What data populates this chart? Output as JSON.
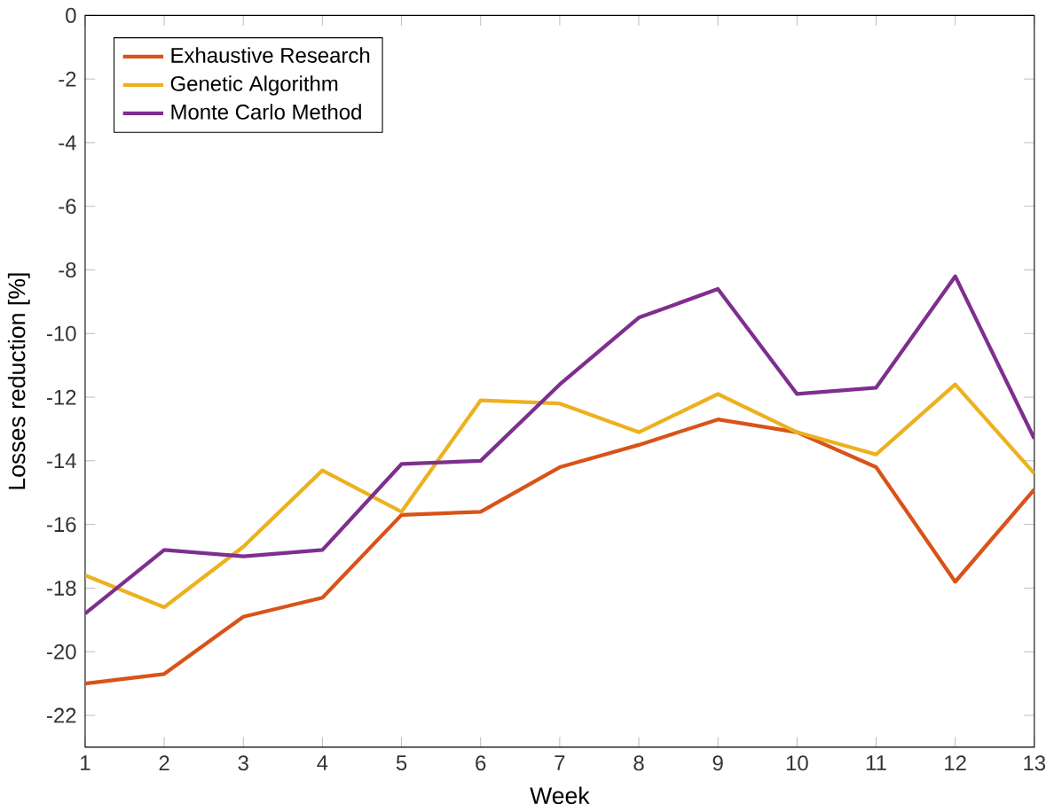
{
  "chart_data": {
    "type": "line",
    "xlabel": "Week",
    "ylabel": "Losses reduction [%]",
    "x": [
      1,
      2,
      3,
      4,
      5,
      6,
      7,
      8,
      9,
      10,
      11,
      12,
      13
    ],
    "series": [
      {
        "name": "Exhaustive Research",
        "color": "#d95319",
        "values": [
          -21.0,
          -20.7,
          -18.9,
          -18.3,
          -15.7,
          -15.6,
          -14.2,
          -13.5,
          -12.7,
          -13.1,
          -14.2,
          -17.8,
          -14.9
        ]
      },
      {
        "name": "Genetic Algorithm",
        "color": "#edb120",
        "values": [
          -17.6,
          -18.6,
          -16.7,
          -14.3,
          -15.6,
          -12.1,
          -12.2,
          -13.1,
          -11.9,
          -13.1,
          -13.8,
          -11.6,
          -14.4
        ]
      },
      {
        "name": "Monte Carlo Method",
        "color": "#7e2f8e",
        "values": [
          -18.8,
          -16.8,
          -17.0,
          -16.8,
          -14.1,
          -14.0,
          -11.6,
          -9.5,
          -8.6,
          -11.9,
          -11.7,
          -8.2,
          -13.3
        ]
      }
    ],
    "xlim": [
      1,
      13
    ],
    "xticks": [
      1,
      2,
      3,
      4,
      5,
      6,
      7,
      8,
      9,
      10,
      11,
      12,
      13
    ],
    "ylim": [
      -23,
      0
    ],
    "yticks": [
      -22,
      -20,
      -18,
      -16,
      -14,
      -12,
      -10,
      -8,
      -6,
      -4,
      -2,
      0
    ],
    "grid": false,
    "legend": "top left",
    "marker": "none",
    "line_style": "solid"
  }
}
